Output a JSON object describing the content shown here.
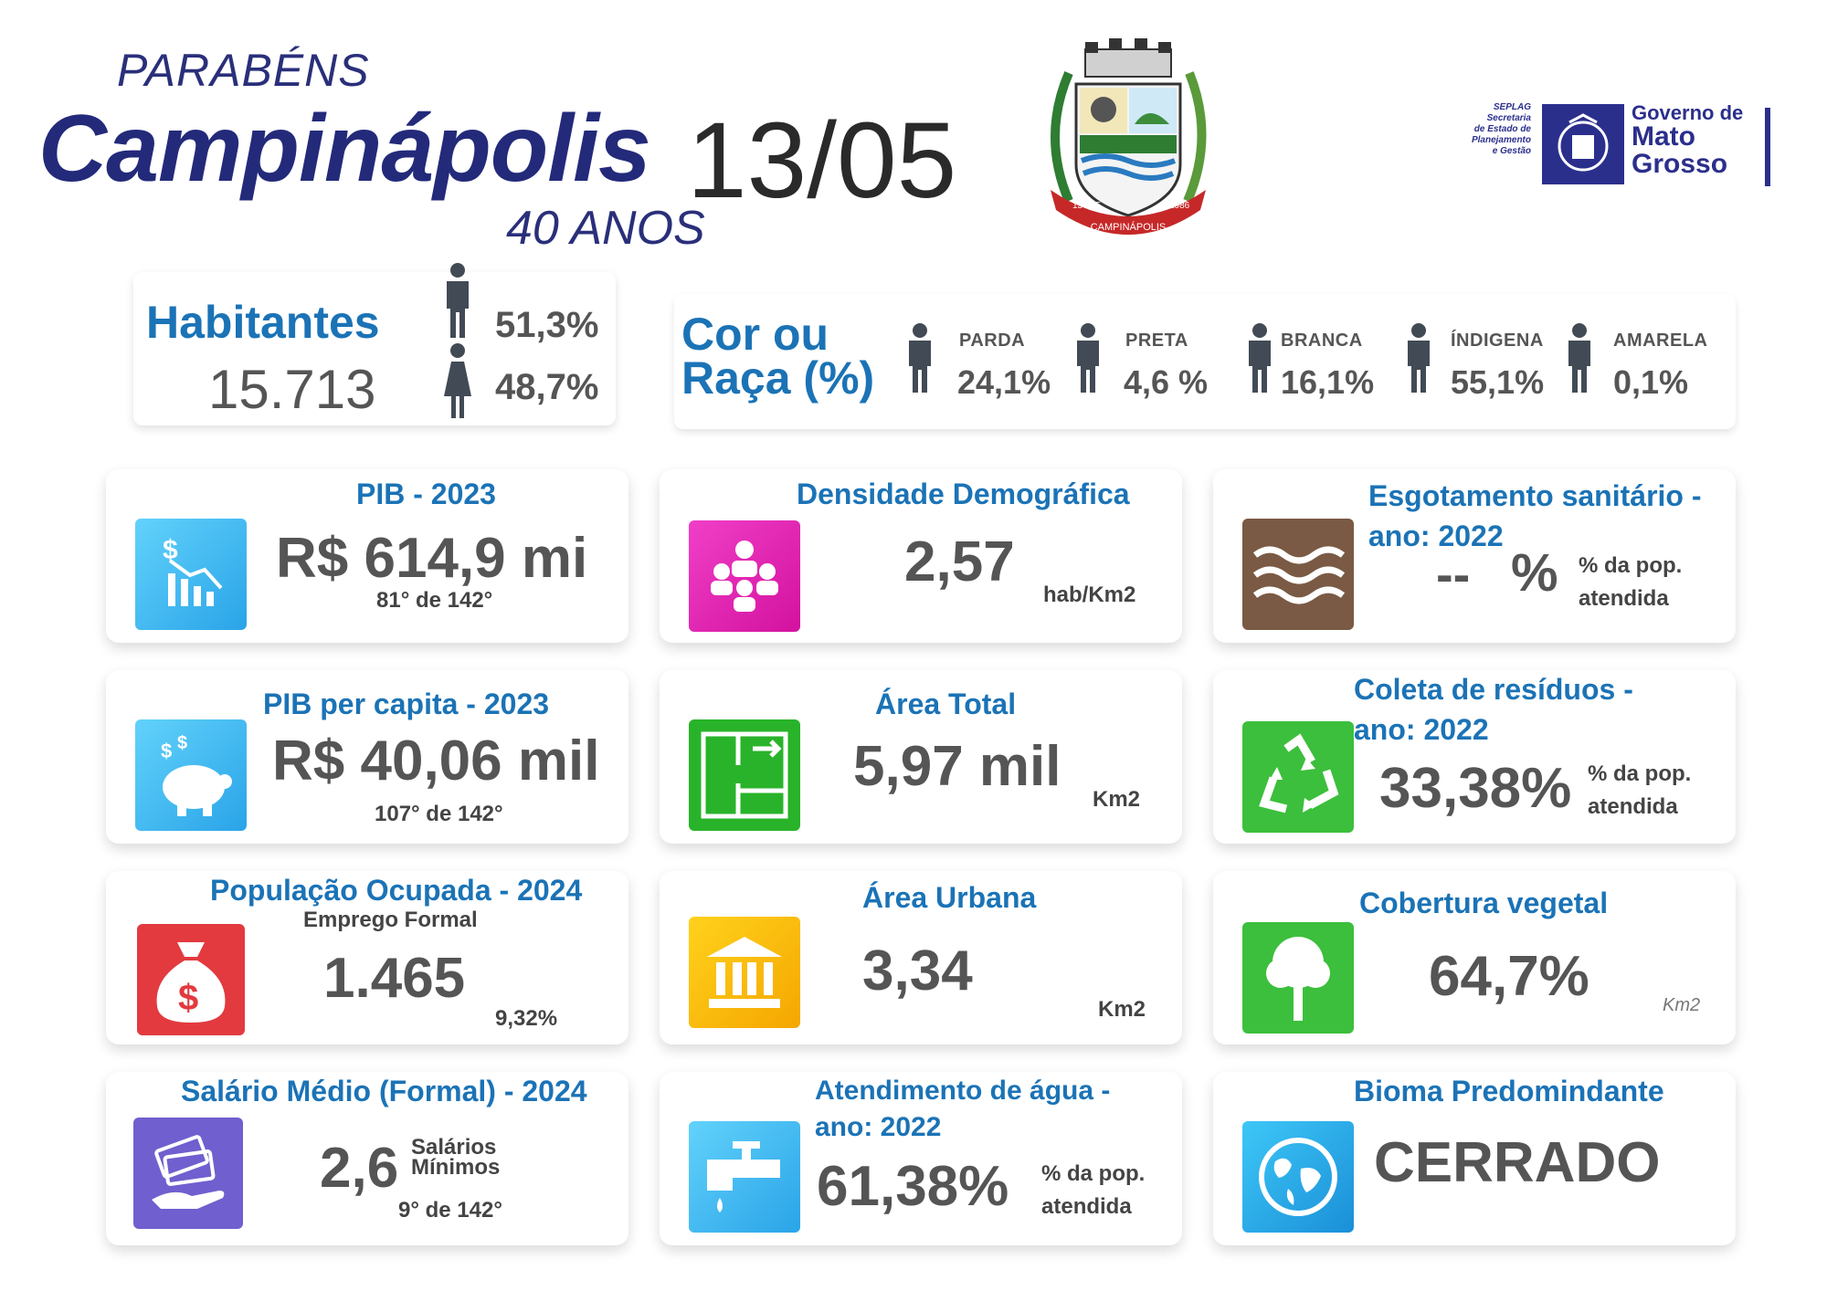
{
  "header": {
    "greeting": "PARABÉNS",
    "city": "Campinápolis",
    "date": "13/05",
    "anniversary": "40 ANOS",
    "crest": {
      "icon": "municipal-coat-of-arms",
      "left_date": "13 - 05",
      "right_year": "1986",
      "name": "CAMPINÁPOLIS"
    },
    "government": {
      "seplag_lines": [
        "SEPLAG",
        "Secretaria",
        "de Estado de",
        "Planejamento",
        "e Gestão"
      ],
      "gov_lines": [
        "Governo de",
        "Mato",
        "Grosso"
      ],
      "brand_color": "#2b2f8c"
    }
  },
  "habitantes": {
    "title": "Habitantes",
    "value": "15.713",
    "male_pct": "51,3%",
    "female_pct": "48,7%"
  },
  "raca": {
    "title_line1": "Cor ou",
    "title_line2": "Raça (%)",
    "items": [
      {
        "label": "PARDA",
        "value": "24,1%"
      },
      {
        "label": "PRETA",
        "value": "4,6 %"
      },
      {
        "label": "BRANCA",
        "value": "16,1%"
      },
      {
        "label": "ÍNDIGENA",
        "value": "55,1%"
      },
      {
        "label": "AMARELA",
        "value": "0,1%"
      }
    ]
  },
  "cards": {
    "pib": {
      "title": "PIB - 2023",
      "value": "R$ 614,9 mi",
      "rank": "81° de 142°",
      "icon": "chart-down-dollar-icon",
      "color": "#3ab6ee"
    },
    "densidade": {
      "title": "Densidade Demográfica",
      "value": "2,57",
      "unit": "hab/Km2",
      "icon": "people-group-icon",
      "color": "#e41fb4"
    },
    "esgoto": {
      "title_line1": "Esgotamento sanitário -",
      "title_line2": "ano: 2022",
      "value": "--",
      "pct": "%",
      "unit_line1": "% da pop.",
      "unit_line2": "atendida",
      "icon": "waves-icon",
      "color": "#7a5a44"
    },
    "pib_capita": {
      "title": "PIB per capita - 2023",
      "value": "R$ 40,06 mil",
      "rank": "107° de 142°",
      "icon": "piggy-bank-icon",
      "color": "#3ab6ee"
    },
    "area_total": {
      "title": "Área Total",
      "value": "5,97 mil",
      "unit": "Km2",
      "icon": "floor-plan-icon",
      "color": "#29b32a"
    },
    "residuos": {
      "title_line1": "Coleta de resíduos -",
      "title_line2": "ano: 2022",
      "value": "33,38%",
      "unit_line1": "% da pop.",
      "unit_line2": "atendida",
      "icon": "recycle-icon",
      "color": "#3cbf3c"
    },
    "pop_ocupada": {
      "title": "População Ocupada - 2024",
      "subtitle": "Emprego Formal",
      "value": "1.465",
      "pct": "9,32%",
      "icon": "money-bag-icon",
      "color": "#e23a3f"
    },
    "area_urbana": {
      "title": "Área Urbana",
      "value": "3,34",
      "unit": "Km2",
      "icon": "bank-building-icon",
      "color": "#f7b800"
    },
    "vegetal": {
      "title": "Cobertura vegetal",
      "value": "64,7%",
      "unit": "Km2",
      "icon": "tree-icon",
      "color": "#3cbf3c"
    },
    "salario": {
      "title": "Salário Médio (Formal) - 2024",
      "value": "2,6",
      "unit_line1": "Salários",
      "unit_line2": "Mínimos",
      "rank": "9° de 142°",
      "icon": "cash-hand-icon",
      "color": "#6f5fcf"
    },
    "agua": {
      "title_line1": "Atendimento de água -",
      "title_line2": "ano: 2022",
      "value": "61,38%",
      "unit_line1": "% da pop.",
      "unit_line2": "atendida",
      "icon": "water-tap-icon",
      "color": "#3ab6ee"
    },
    "bioma": {
      "title": "Bioma Predomindante",
      "value": "CERRADO",
      "icon": "globe-icon",
      "color": "#2aa4e8"
    }
  }
}
